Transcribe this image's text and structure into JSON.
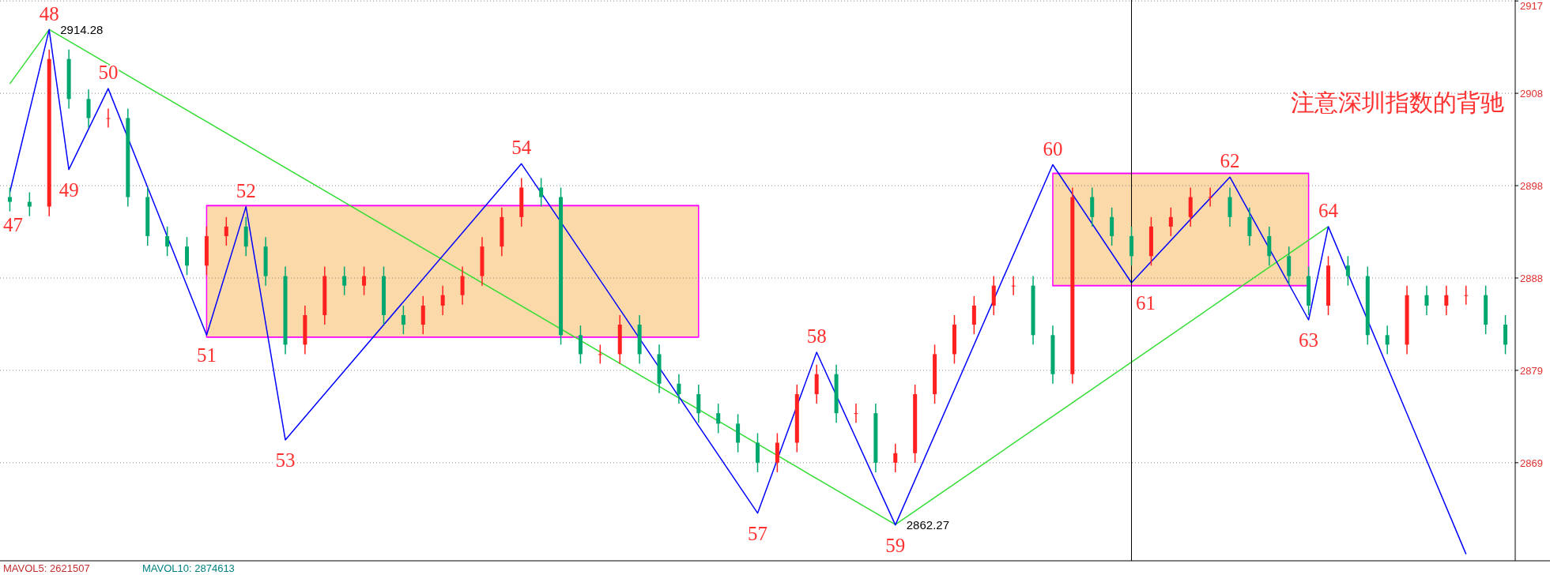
{
  "chart_data": {
    "type": "candlestick",
    "ylim": [
      2858.5,
      2917.4
    ],
    "yticks": [
      {
        "value": 2917.3,
        "label": "2917"
      },
      {
        "value": 2907.6,
        "label": "2908"
      },
      {
        "value": 2897.9,
        "label": "2898"
      },
      {
        "value": 2888.2,
        "label": "2888"
      },
      {
        "value": 2878.5,
        "label": "2879"
      },
      {
        "value": 2868.8,
        "label": "2869"
      }
    ],
    "grid": "y",
    "tick_labels": "y",
    "categories": [
      null,
      null,
      null,
      null,
      null,
      null,
      null,
      null,
      null,
      null,
      null,
      null,
      null,
      null,
      null,
      null,
      null,
      null,
      null,
      null,
      null,
      null,
      null,
      null,
      null,
      null,
      null,
      null,
      null,
      null,
      null,
      null,
      null,
      null,
      null,
      null,
      null,
      null,
      null,
      null,
      null,
      null,
      null,
      null,
      null,
      null,
      null,
      null,
      null,
      null,
      null,
      null,
      null,
      null,
      null,
      null,
      null,
      null,
      null,
      null,
      null,
      null,
      null,
      null,
      null,
      null,
      null,
      null,
      null,
      null,
      null,
      null,
      null,
      null,
      null,
      null,
      null
    ],
    "ohlc": [
      [
        2896.7,
        2897.7,
        2895.2,
        2896.2
      ],
      [
        2896.2,
        2897.2,
        2894.7,
        2895.7
      ],
      [
        2895.7,
        2912.2,
        2894.7,
        2911.2
      ],
      [
        2911.2,
        2912.2,
        2906.0,
        2907.0
      ],
      [
        2907.0,
        2908.0,
        2904.0,
        2905.0
      ],
      [
        2905.0,
        2906.0,
        2904.0,
        2905.0
      ],
      [
        2905.0,
        2906.0,
        2895.7,
        2896.7
      ],
      [
        2896.7,
        2897.7,
        2891.6,
        2892.6
      ],
      [
        2892.6,
        2893.6,
        2890.5,
        2891.5
      ],
      [
        2891.5,
        2892.5,
        2888.5,
        2889.5
      ],
      [
        2889.5,
        2893.6,
        2888.5,
        2892.6
      ],
      [
        2892.6,
        2894.6,
        2891.6,
        2893.6
      ],
      [
        2893.6,
        2894.6,
        2890.5,
        2891.5
      ],
      [
        2891.5,
        2892.5,
        2887.4,
        2888.4
      ],
      [
        2888.4,
        2889.4,
        2880.2,
        2881.2
      ],
      [
        2881.2,
        2885.3,
        2880.2,
        2884.3
      ],
      [
        2884.3,
        2889.4,
        2883.3,
        2888.4
      ],
      [
        2888.4,
        2889.4,
        2886.4,
        2887.4
      ],
      [
        2887.4,
        2889.4,
        2886.4,
        2888.4
      ],
      [
        2888.4,
        2889.4,
        2883.3,
        2884.3
      ],
      [
        2884.3,
        2885.3,
        2882.3,
        2883.3
      ],
      [
        2883.3,
        2886.3,
        2882.3,
        2885.3
      ],
      [
        2885.3,
        2887.4,
        2884.3,
        2886.4
      ],
      [
        2886.4,
        2889.4,
        2885.4,
        2888.4
      ],
      [
        2888.4,
        2892.5,
        2887.4,
        2891.5
      ],
      [
        2891.5,
        2895.6,
        2890.5,
        2894.6
      ],
      [
        2894.6,
        2898.7,
        2893.6,
        2897.7
      ],
      [
        2897.7,
        2898.7,
        2895.7,
        2896.7
      ],
      [
        2896.7,
        2897.7,
        2881.2,
        2882.2
      ],
      [
        2882.2,
        2883.2,
        2879.2,
        2880.2
      ],
      [
        2880.2,
        2881.2,
        2879.2,
        2880.2
      ],
      [
        2880.2,
        2884.3,
        2879.2,
        2883.3
      ],
      [
        2883.3,
        2884.3,
        2879.2,
        2880.2
      ],
      [
        2880.2,
        2881.2,
        2876.1,
        2877.1
      ],
      [
        2877.1,
        2878.1,
        2875.0,
        2876.0
      ],
      [
        2876.0,
        2877.0,
        2873.0,
        2874.0
      ],
      [
        2874.0,
        2875.0,
        2871.9,
        2872.9
      ],
      [
        2872.9,
        2873.9,
        2869.9,
        2870.9
      ],
      [
        2870.9,
        2871.9,
        2867.8,
        2868.8
      ],
      [
        2868.8,
        2871.9,
        2867.8,
        2870.9
      ],
      [
        2870.9,
        2877.0,
        2869.9,
        2876.0
      ],
      [
        2876.0,
        2879.1,
        2875.0,
        2878.1
      ],
      [
        2878.1,
        2879.1,
        2873.0,
        2874.0
      ],
      [
        2874.0,
        2875.0,
        2873.0,
        2874.0
      ],
      [
        2874.0,
        2875.0,
        2867.8,
        2868.8
      ],
      [
        2868.8,
        2870.8,
        2867.8,
        2869.8
      ],
      [
        2869.8,
        2877.0,
        2868.8,
        2876.0
      ],
      [
        2876.0,
        2881.2,
        2875.0,
        2880.2
      ],
      [
        2880.2,
        2884.3,
        2879.2,
        2883.3
      ],
      [
        2883.3,
        2886.3,
        2882.3,
        2885.3
      ],
      [
        2885.3,
        2888.4,
        2884.3,
        2887.4
      ],
      [
        2887.4,
        2888.4,
        2886.4,
        2887.4
      ],
      [
        2887.4,
        2888.4,
        2881.2,
        2882.2
      ],
      [
        2882.2,
        2883.2,
        2877.1,
        2878.1
      ],
      [
        2878.1,
        2897.7,
        2877.1,
        2896.7
      ],
      [
        2896.7,
        2897.7,
        2893.6,
        2894.6
      ],
      [
        2894.6,
        2895.6,
        2891.6,
        2892.6
      ],
      [
        2892.6,
        2893.6,
        2889.5,
        2890.5
      ],
      [
        2890.5,
        2894.6,
        2889.5,
        2893.6
      ],
      [
        2893.6,
        2895.6,
        2892.6,
        2894.6
      ],
      [
        2894.6,
        2897.7,
        2893.6,
        2896.7
      ],
      [
        2896.7,
        2897.7,
        2895.7,
        2896.7
      ],
      [
        2896.7,
        2897.7,
        2893.6,
        2894.6
      ],
      [
        2894.6,
        2895.6,
        2891.6,
        2892.6
      ],
      [
        2892.6,
        2893.6,
        2889.5,
        2890.5
      ],
      [
        2890.5,
        2891.5,
        2887.4,
        2888.4
      ],
      [
        2888.4,
        2889.4,
        2884.3,
        2885.3
      ],
      [
        2885.3,
        2890.5,
        2884.3,
        2889.5
      ],
      [
        2889.5,
        2890.5,
        2887.4,
        2888.4
      ],
      [
        2888.4,
        2889.4,
        2881.2,
        2882.2
      ],
      [
        2882.2,
        2883.2,
        2880.2,
        2881.2
      ],
      [
        2881.2,
        2887.4,
        2880.2,
        2886.4
      ],
      [
        2886.4,
        2887.4,
        2884.3,
        2885.3
      ],
      [
        2885.3,
        2887.4,
        2884.3,
        2886.4
      ],
      [
        2886.4,
        2887.4,
        2885.4,
        2886.4
      ],
      [
        2886.4,
        2887.4,
        2882.3,
        2883.3
      ],
      [
        2883.3,
        2884.3,
        2880.2,
        2881.2
      ]
    ],
    "series": [
      {
        "type": "line",
        "color": "#ff00ff",
        "values": [
          null,
          null,
          null,
          null,
          null,
          null,
          null,
          null,
          null,
          null,
          2895.8,
          null,
          null,
          null,
          null,
          null,
          null,
          null,
          null,
          null,
          null,
          null,
          null,
          null,
          null,
          null,
          null,
          null,
          null,
          null,
          null,
          null,
          null,
          null,
          null,
          2895.8,
          null,
          null,
          null,
          null,
          null,
          null,
          null,
          null,
          null,
          null,
          null,
          null,
          null,
          null,
          null,
          null,
          null,
          null,
          null,
          null,
          null,
          null,
          null,
          null,
          null,
          null,
          null,
          null,
          null,
          null,
          null,
          null,
          null,
          null,
          null,
          null,
          null,
          null,
          null,
          null,
          null
        ]
      },
      {
        "type": "line",
        "color": "#ff00ff",
        "values": [
          null,
          null,
          null,
          null,
          null,
          null,
          null,
          null,
          null,
          null,
          2882.0,
          null,
          null,
          null,
          null,
          null,
          null,
          null,
          null,
          null,
          null,
          null,
          null,
          null,
          null,
          null,
          null,
          null,
          null,
          null,
          null,
          null,
          null,
          null,
          null,
          2882.0,
          null,
          null,
          null,
          null,
          null,
          null,
          null,
          null,
          null,
          null,
          null,
          null,
          null,
          null,
          null,
          null,
          null,
          null,
          null,
          null,
          null,
          null,
          null,
          null,
          null,
          null,
          null,
          null,
          null,
          null,
          null,
          null,
          null,
          null,
          null,
          null,
          null,
          null,
          null,
          null,
          null
        ]
      },
      {
        "type": "line",
        "color": "#ff00ff",
        "values": [
          null,
          null,
          null,
          null,
          null,
          null,
          null,
          null,
          null,
          null,
          null,
          null,
          null,
          null,
          null,
          null,
          null,
          null,
          null,
          null,
          null,
          null,
          null,
          null,
          null,
          null,
          null,
          null,
          null,
          null,
          null,
          null,
          null,
          null,
          null,
          null,
          null,
          null,
          null,
          null,
          null,
          null,
          null,
          null,
          null,
          null,
          null,
          null,
          null,
          null,
          null,
          null,
          null,
          2899.2,
          null,
          null,
          null,
          null,
          null,
          null,
          null,
          null,
          null,
          null,
          null,
          null,
          2899.2,
          null,
          null,
          null,
          null,
          null,
          null,
          null,
          null,
          null,
          null
        ]
      },
      {
        "type": "line",
        "color": "#ff00ff",
        "values": [
          null,
          null,
          null,
          null,
          null,
          null,
          null,
          null,
          null,
          null,
          null,
          null,
          null,
          null,
          null,
          null,
          null,
          null,
          null,
          null,
          null,
          null,
          null,
          null,
          null,
          null,
          null,
          null,
          null,
          null,
          null,
          null,
          null,
          null,
          null,
          null,
          null,
          null,
          null,
          null,
          null,
          null,
          null,
          null,
          null,
          null,
          null,
          null,
          null,
          null,
          null,
          null,
          null,
          2887.4,
          null,
          null,
          null,
          null,
          null,
          null,
          null,
          null,
          null,
          null,
          null,
          null,
          2887.4,
          null,
          null,
          null,
          null,
          null,
          null,
          null,
          null,
          null,
          null
        ]
      },
      {
        "type": "line",
        "color": "#33dd33",
        "values": [
          2908.6,
          null,
          2914.3,
          null,
          null,
          null,
          null,
          null,
          null,
          null,
          null,
          null,
          null,
          null,
          null,
          null,
          null,
          null,
          null,
          null,
          null,
          null,
          null,
          null,
          null,
          null,
          null,
          null,
          null,
          null,
          null,
          null,
          null,
          null,
          null,
          null,
          null,
          null,
          null,
          null,
          null,
          null,
          null,
          null,
          null,
          2862.3,
          null,
          null,
          null,
          null,
          null,
          null,
          null,
          null,
          null,
          null,
          null,
          null,
          null,
          null,
          null,
          null,
          null,
          null,
          null,
          null,
          null,
          2893.6,
          null,
          null,
          null,
          null,
          null,
          null,
          null,
          null,
          null
        ]
      },
      {
        "type": "line",
        "color": "#0000ff",
        "values": [
          2897.2,
          null,
          2914.28,
          2899.6,
          null,
          2908.1,
          null,
          null,
          null,
          null,
          2882.2,
          null,
          2895.7,
          null,
          2871.2,
          null,
          null,
          null,
          null,
          null,
          null,
          null,
          null,
          null,
          null,
          null,
          2900.2,
          null,
          null,
          null,
          null,
          null,
          null,
          null,
          null,
          null,
          null,
          null,
          2863.5,
          null,
          null,
          2880.4,
          null,
          null,
          null,
          2862.27,
          null,
          null,
          null,
          null,
          null,
          null,
          null,
          2900.1,
          null,
          null,
          null,
          2887.7,
          null,
          null,
          null,
          null,
          2898.8,
          null,
          null,
          null,
          2883.8,
          2893.6,
          null,
          null,
          null,
          null,
          null,
          null,
          2859.2,
          null,
          null
        ],
        "value_labels": [
          null,
          null,
          "2914.28",
          null,
          null,
          null,
          null,
          null,
          null,
          null,
          null,
          null,
          null,
          null,
          null,
          null,
          null,
          null,
          null,
          null,
          null,
          null,
          null,
          null,
          null,
          null,
          null,
          null,
          null,
          null,
          null,
          null,
          null,
          null,
          null,
          null,
          null,
          null,
          null,
          null,
          null,
          null,
          null,
          null,
          null,
          "2862.27",
          null,
          null,
          null,
          null,
          null,
          null,
          null,
          null,
          null,
          null,
          null,
          null,
          null,
          null,
          null,
          null,
          null,
          null,
          null,
          null,
          null,
          null,
          null,
          null,
          null,
          null,
          null,
          null,
          null,
          null,
          null
        ]
      }
    ],
    "annotations": [
      "47",
      "48",
      "49",
      "50",
      "51",
      "52",
      "53",
      "54",
      "57",
      "58",
      "59",
      "60",
      "61",
      "62",
      "63",
      "64",
      "注意深圳指数的背驰",
      "MAVOL5: 2621507",
      "MAVOL10: 2874613"
    ]
  }
}
